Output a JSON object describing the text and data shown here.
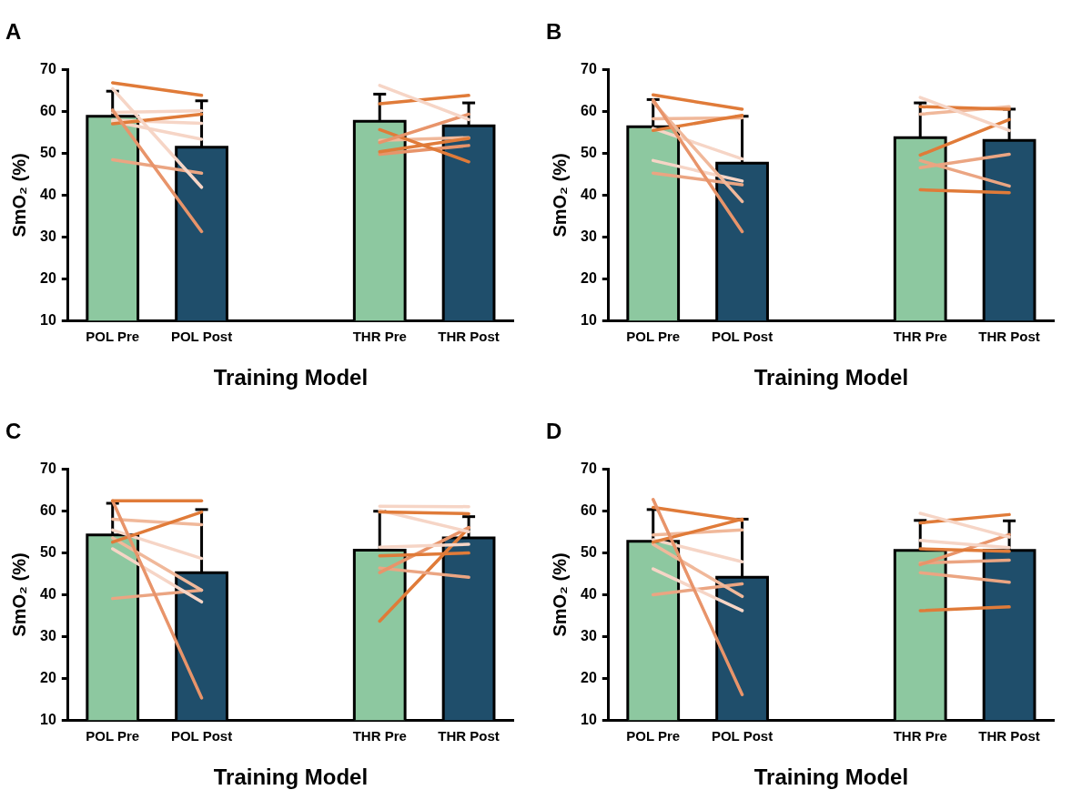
{
  "chart_data": [
    {
      "type": "bar",
      "title": "A",
      "xlabel": "Training Model",
      "ylabel": "SmO₂ (%)",
      "categories": [
        "POL Pre",
        "POL Post",
        null,
        "THR Pre",
        "THR Post"
      ],
      "ylim": [
        10,
        70
      ],
      "yticks": [
        10,
        20,
        30,
        40,
        50,
        60,
        70
      ],
      "marker": "none",
      "series": [
        {
          "colors": [
            "#8dc8a0",
            "#1f4e6b",
            null,
            "#8dc8a0",
            "#1f4e6b"
          ],
          "values": [
            58.9,
            51.5,
            null,
            57.7,
            56.6
          ],
          "errors": [
            [
              58.9,
              64.9
            ],
            [
              51.5,
              62.6
            ],
            null,
            [
              57.7,
              64.2
            ],
            [
              56.6,
              62.1
            ]
          ]
        },
        {
          "type": "line",
          "color": "#e07b39",
          "x": [
            "POL Pre",
            "POL Post"
          ],
          "values": [
            66.9,
            63.9
          ]
        },
        {
          "type": "line",
          "color": "#f6d5c6",
          "x": [
            "POL Pre",
            "POL Post"
          ],
          "values": [
            65.5,
            41.9
          ]
        },
        {
          "type": "line",
          "color": "#e8946a",
          "x": [
            "POL Pre",
            "POL Post"
          ],
          "values": [
            60.4,
            31.3
          ]
        },
        {
          "type": "line",
          "color": "#f6d5c6",
          "x": [
            "POL Pre",
            "POL Post"
          ],
          "values": [
            59.8,
            60.2
          ]
        },
        {
          "type": "line",
          "color": "#e07b39",
          "x": [
            "POL Pre",
            "POL Post"
          ],
          "values": [
            57.1,
            59.4
          ]
        },
        {
          "type": "line",
          "color": "#f6d5c6",
          "x": [
            "POL Pre",
            "POL Post"
          ],
          "values": [
            58.0,
            57.2
          ]
        },
        {
          "type": "line",
          "color": "#f6d5c6",
          "x": [
            "POL Pre",
            "POL Post"
          ],
          "values": [
            57.7,
            53.4
          ]
        },
        {
          "type": "line",
          "color": "#eba582",
          "x": [
            "POL Pre",
            "POL Post"
          ],
          "values": [
            48.5,
            45.3
          ]
        },
        {
          "type": "line",
          "color": "#f6d5c6",
          "x": [
            "THR Pre",
            "THR Post"
          ],
          "values": [
            66.3,
            58.1
          ]
        },
        {
          "type": "line",
          "color": "#e07b39",
          "x": [
            "THR Pre",
            "THR Post"
          ],
          "values": [
            61.9,
            63.9
          ]
        },
        {
          "type": "line",
          "color": "#e8946a",
          "x": [
            "THR Pre",
            "THR Post"
          ],
          "values": [
            52.6,
            59.4
          ]
        },
        {
          "type": "line",
          "color": "#e07b39",
          "x": [
            "THR Pre",
            "THR Post"
          ],
          "values": [
            55.7,
            48.0
          ]
        },
        {
          "type": "line",
          "color": "#e07b39",
          "x": [
            "THR Pre",
            "THR Post"
          ],
          "values": [
            50.4,
            53.6
          ]
        },
        {
          "type": "line",
          "color": "#f0b89a",
          "x": [
            "THR Pre",
            "THR Post"
          ],
          "values": [
            53.1,
            53.8
          ]
        },
        {
          "type": "line",
          "color": "#e8946a",
          "x": [
            "THR Pre",
            "THR Post"
          ],
          "values": [
            49.8,
            51.9
          ]
        }
      ]
    },
    {
      "type": "bar",
      "title": "B",
      "xlabel": "Training Model",
      "ylabel": "SmO₂ (%)",
      "categories": [
        "POL Pre",
        "POL Post",
        null,
        "THR Pre",
        "THR Post"
      ],
      "ylim": [
        10,
        70
      ],
      "yticks": [
        10,
        20,
        30,
        40,
        50,
        60,
        70
      ],
      "marker": "none",
      "series": [
        {
          "colors": [
            "#8dc8a0",
            "#1f4e6b",
            null,
            "#8dc8a0",
            "#1f4e6b"
          ],
          "values": [
            56.4,
            47.7,
            null,
            53.8,
            53.1
          ],
          "errors": [
            [
              56.4,
              62.9
            ],
            [
              47.7,
              58.9
            ],
            null,
            [
              53.8,
              62.1
            ],
            [
              53.1,
              60.6
            ]
          ]
        },
        {
          "type": "line",
          "color": "#e07b39",
          "x": [
            "POL Pre",
            "POL Post"
          ],
          "values": [
            64.0,
            60.6
          ]
        },
        {
          "type": "line",
          "color": "#e8946a",
          "x": [
            "POL Pre",
            "POL Post"
          ],
          "values": [
            62.8,
            31.3
          ]
        },
        {
          "type": "line",
          "color": "#f0b89a",
          "x": [
            "POL Pre",
            "POL Post"
          ],
          "values": [
            62.3,
            38.5
          ]
        },
        {
          "type": "line",
          "color": "#e07b39",
          "x": [
            "POL Pre",
            "POL Post"
          ],
          "values": [
            55.5,
            59.1
          ]
        },
        {
          "type": "line",
          "color": "#f0b89a",
          "x": [
            "POL Pre",
            "POL Post"
          ],
          "values": [
            58.3,
            58.5
          ]
        },
        {
          "type": "line",
          "color": "#f6d5c6",
          "x": [
            "POL Pre",
            "POL Post"
          ],
          "values": [
            56.0,
            48.7
          ]
        },
        {
          "type": "line",
          "color": "#f6d5c6",
          "x": [
            "POL Pre",
            "POL Post"
          ],
          "values": [
            48.3,
            43.4
          ]
        },
        {
          "type": "line",
          "color": "#eba582",
          "x": [
            "POL Pre",
            "POL Post"
          ],
          "values": [
            45.3,
            42.5
          ]
        },
        {
          "type": "line",
          "color": "#f6d5c6",
          "x": [
            "THR Pre",
            "THR Post"
          ],
          "values": [
            63.4,
            55.5
          ]
        },
        {
          "type": "line",
          "color": "#e07b39",
          "x": [
            "THR Pre",
            "THR Post"
          ],
          "values": [
            61.2,
            60.6
          ]
        },
        {
          "type": "line",
          "color": "#f0b89a",
          "x": [
            "THR Pre",
            "THR Post"
          ],
          "values": [
            59.4,
            61.2
          ]
        },
        {
          "type": "line",
          "color": "#e07b39",
          "x": [
            "THR Pre",
            "THR Post"
          ],
          "values": [
            49.6,
            58.1
          ]
        },
        {
          "type": "line",
          "color": "#eba582",
          "x": [
            "THR Pre",
            "THR Post"
          ],
          "values": [
            46.6,
            49.8
          ]
        },
        {
          "type": "line",
          "color": "#eba582",
          "x": [
            "THR Pre",
            "THR Post"
          ],
          "values": [
            48.3,
            42.2
          ]
        },
        {
          "type": "line",
          "color": "#e07b39",
          "x": [
            "THR Pre",
            "THR Post"
          ],
          "values": [
            41.3,
            40.6
          ]
        }
      ]
    },
    {
      "type": "bar",
      "title": "C",
      "xlabel": "Training Model",
      "ylabel": "SmO₂ (%)",
      "categories": [
        "POL Pre",
        "POL Post",
        null,
        "THR Pre",
        "THR Post"
      ],
      "ylim": [
        10,
        70
      ],
      "yticks": [
        10,
        20,
        30,
        40,
        50,
        60,
        70
      ],
      "marker": "none",
      "series": [
        {
          "colors": [
            "#8dc8a0",
            "#1f4e6b",
            null,
            "#8dc8a0",
            "#1f4e6b"
          ],
          "values": [
            54.3,
            45.3,
            null,
            50.7,
            53.6
          ],
          "errors": [
            [
              54.3,
              61.9
            ],
            [
              45.3,
              60.4
            ],
            null,
            [
              50.7,
              60.0
            ],
            [
              53.6,
              58.7
            ]
          ]
        },
        {
          "type": "line",
          "color": "#e07b39",
          "x": [
            "POL Pre",
            "POL Post"
          ],
          "values": [
            62.5,
            62.5
          ]
        },
        {
          "type": "line",
          "color": "#e8946a",
          "x": [
            "POL Pre",
            "POL Post"
          ],
          "values": [
            62.5,
            15.3
          ]
        },
        {
          "type": "line",
          "color": "#e07b39",
          "x": [
            "POL Pre",
            "POL Post"
          ],
          "values": [
            52.6,
            59.8
          ]
        },
        {
          "type": "line",
          "color": "#f0b89a",
          "x": [
            "POL Pre",
            "POL Post"
          ],
          "values": [
            58.1,
            56.8
          ]
        },
        {
          "type": "line",
          "color": "#f6d5c6",
          "x": [
            "POL Pre",
            "POL Post"
          ],
          "values": [
            55.5,
            48.7
          ]
        },
        {
          "type": "line",
          "color": "#f0b89a",
          "x": [
            "POL Pre",
            "POL Post"
          ],
          "values": [
            53.6,
            41.1
          ]
        },
        {
          "type": "line",
          "color": "#f6d5c6",
          "x": [
            "POL Pre",
            "POL Post"
          ],
          "values": [
            51.0,
            38.3
          ]
        },
        {
          "type": "line",
          "color": "#eba582",
          "x": [
            "POL Pre",
            "POL Post"
          ],
          "values": [
            39.1,
            41.1
          ]
        },
        {
          "type": "line",
          "color": "#f6d5c6",
          "x": [
            "THR Pre",
            "THR Post"
          ],
          "values": [
            61.2,
            61.1
          ]
        },
        {
          "type": "line",
          "color": "#e07b39",
          "x": [
            "THR Pre",
            "THR Post"
          ],
          "values": [
            59.8,
            59.4
          ]
        },
        {
          "type": "line",
          "color": "#f6d5c6",
          "x": [
            "THR Pre",
            "THR Post"
          ],
          "values": [
            60.2,
            55.1
          ]
        },
        {
          "type": "line",
          "color": "#f6d5c6",
          "x": [
            "THR Pre",
            "THR Post"
          ],
          "values": [
            51.4,
            52.1
          ]
        },
        {
          "type": "line",
          "color": "#e07b39",
          "x": [
            "THR Pre",
            "THR Post"
          ],
          "values": [
            49.3,
            50.0
          ]
        },
        {
          "type": "line",
          "color": "#e8946a",
          "x": [
            "THR Pre",
            "THR Post"
          ],
          "values": [
            45.3,
            56.1
          ]
        },
        {
          "type": "line",
          "color": "#eba582",
          "x": [
            "THR Pre",
            "THR Post"
          ],
          "values": [
            46.4,
            44.2
          ]
        },
        {
          "type": "line",
          "color": "#e07b39",
          "x": [
            "THR Pre",
            "THR Post"
          ],
          "values": [
            33.7,
            56.0
          ]
        }
      ]
    },
    {
      "type": "bar",
      "title": "D",
      "xlabel": "Training Model",
      "ylabel": "SmO₂ (%)",
      "categories": [
        "POL Pre",
        "POL Post",
        null,
        "THR Pre",
        "THR Post"
      ],
      "ylim": [
        10,
        70
      ],
      "yticks": [
        10,
        20,
        30,
        40,
        50,
        60,
        70
      ],
      "marker": "none",
      "series": [
        {
          "colors": [
            "#8dc8a0",
            "#1f4e6b",
            null,
            "#8dc8a0",
            "#1f4e6b"
          ],
          "values": [
            52.8,
            44.2,
            null,
            50.6,
            50.6
          ],
          "errors": [
            [
              52.8,
              60.4
            ],
            [
              44.2,
              58.1
            ],
            null,
            [
              50.6,
              57.8
            ],
            [
              50.6,
              57.7
            ]
          ]
        },
        {
          "type": "line",
          "color": "#e8946a",
          "x": [
            "POL Pre",
            "POL Post"
          ],
          "values": [
            62.8,
            16.1
          ]
        },
        {
          "type": "line",
          "color": "#e07b39",
          "x": [
            "POL Pre",
            "POL Post"
          ],
          "values": [
            60.9,
            57.8
          ]
        },
        {
          "type": "line",
          "color": "#e07b39",
          "x": [
            "POL Pre",
            "POL Post"
          ],
          "values": [
            52.6,
            58.1
          ]
        },
        {
          "type": "line",
          "color": "#f0b89a",
          "x": [
            "POL Pre",
            "POL Post"
          ],
          "values": [
            54.3,
            55.5
          ]
        },
        {
          "type": "line",
          "color": "#f6d5c6",
          "x": [
            "POL Pre",
            "POL Post"
          ],
          "values": [
            53.2,
            47.9
          ]
        },
        {
          "type": "line",
          "color": "#f0b89a",
          "x": [
            "POL Pre",
            "POL Post"
          ],
          "values": [
            52.1,
            39.6
          ]
        },
        {
          "type": "line",
          "color": "#f6d5c6",
          "x": [
            "POL Pre",
            "POL Post"
          ],
          "values": [
            46.2,
            36.2
          ]
        },
        {
          "type": "line",
          "color": "#eba582",
          "x": [
            "POL Pre",
            "POL Post"
          ],
          "values": [
            40.0,
            42.6
          ]
        },
        {
          "type": "line",
          "color": "#f6d5c6",
          "x": [
            "THR Pre",
            "THR Post"
          ],
          "values": [
            59.5,
            53.8
          ]
        },
        {
          "type": "line",
          "color": "#e07b39",
          "x": [
            "THR Pre",
            "THR Post"
          ],
          "values": [
            57.2,
            59.2
          ]
        },
        {
          "type": "line",
          "color": "#f6d5c6",
          "x": [
            "THR Pre",
            "THR Post"
          ],
          "values": [
            53.0,
            51.3
          ]
        },
        {
          "type": "line",
          "color": "#e07b39",
          "x": [
            "THR Pre",
            "THR Post"
          ],
          "values": [
            51.0,
            50.4
          ]
        },
        {
          "type": "line",
          "color": "#e8946a",
          "x": [
            "THR Pre",
            "THR Post"
          ],
          "values": [
            47.2,
            54.4
          ]
        },
        {
          "type": "line",
          "color": "#eba582",
          "x": [
            "THR Pre",
            "THR Post"
          ],
          "values": [
            47.6,
            48.3
          ]
        },
        {
          "type": "line",
          "color": "#eba582",
          "x": [
            "THR Pre",
            "THR Post"
          ],
          "values": [
            45.3,
            43.0
          ]
        },
        {
          "type": "line",
          "color": "#e07b39",
          "x": [
            "THR Pre",
            "THR Post"
          ],
          "values": [
            36.2,
            37.1
          ]
        }
      ]
    }
  ]
}
